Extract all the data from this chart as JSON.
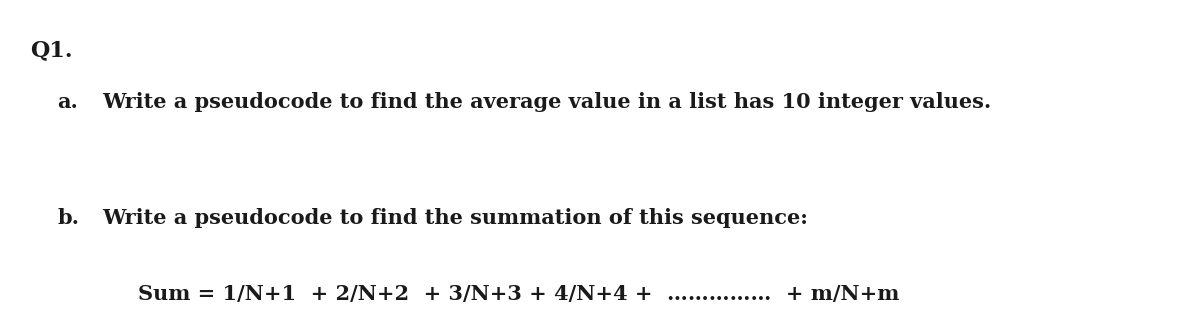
{
  "background_color": "#ffffff",
  "title_text": "Q1.",
  "title_fontsize": 16,
  "title_fontweight": "bold",
  "line_a_label": "a.",
  "line_a_text": "Write a pseudocode to find the average value in a list has 10 integer values.",
  "line_a_fontsize": 15,
  "line_b_label": "b.",
  "line_b_text": "Write a pseudocode to find the summation of this sequence:",
  "line_b_fontsize": 15,
  "line_c_text": "Sum = 1/N+1  + 2/N+2  + 3/N+3 + 4/N+4 +  ……………  + m/N+m",
  "line_c_fontsize": 15,
  "font_family": "DejaVu Serif",
  "font_style": "normal",
  "font_weight": "bold",
  "text_color": "#1a1a1a",
  "fig_width": 12.0,
  "fig_height": 3.3,
  "dpi": 100
}
